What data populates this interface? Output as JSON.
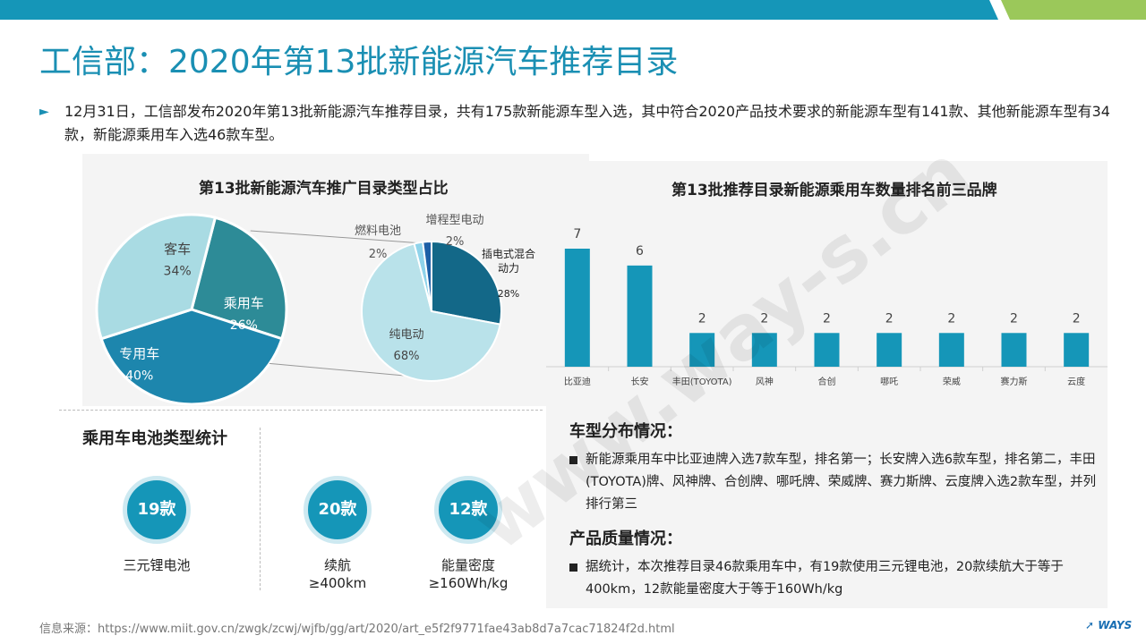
{
  "title": "工信部：2020年第13批新能源汽车推荐目录",
  "intro": "12月31日，工信部发布2020年第13批新能源汽车推荐目录，共有175款新能源车型入选，其中符合2020产品技术要求的新能源车型有141款、其他新能源车型有34款，新能源乘用车入选46款车型。",
  "colors": {
    "accent": "#1a8fb3",
    "bar": "#1596b8",
    "green": "#9bc85a"
  },
  "chart_data": [
    {
      "type": "pie",
      "title": "第13批新能源汽车推广目录类型占比",
      "slices": [
        {
          "label": "乘用车",
          "value_label": "26%",
          "value": 26,
          "color": "#2d8b97"
        },
        {
          "label": "专用车",
          "value_label": "40%",
          "value": 40,
          "color": "#1d86ad"
        },
        {
          "label": "客车",
          "value_label": "34%",
          "value": 34,
          "color": "#a9dbe3"
        }
      ],
      "sub_pie": {
        "parent": "乘用车",
        "slices": [
          {
            "label": "插电式混合\n动力",
            "value_label": "28%",
            "value": 28,
            "color": "#136888"
          },
          {
            "label": "纯电动",
            "value_label": "68%",
            "value": 68,
            "color": "#b9e2ea"
          },
          {
            "label": "燃料电池",
            "value_label": "2%",
            "value": 2,
            "color": "#8fd3ea"
          },
          {
            "label": "增程型电动",
            "value_label": "2%",
            "value": 2,
            "color": "#1d5fa6"
          }
        ]
      }
    },
    {
      "type": "bar",
      "title": "第13批推荐目录新能源乘用车数量排名前三品牌",
      "categories": [
        "比亚迪",
        "长安",
        "丰田(TOYOTA)",
        "风神",
        "合创",
        "哪吒",
        "荣威",
        "赛力斯",
        "云度"
      ],
      "values": [
        7,
        6,
        2,
        2,
        2,
        2,
        2,
        2,
        2
      ],
      "ylim": [
        0,
        7
      ]
    }
  ],
  "battery": {
    "title": "乘用车电池类型统计",
    "items": [
      {
        "value": "19款",
        "label": "三元锂电池"
      },
      {
        "value": "20款",
        "label": "续航\n≥400km"
      },
      {
        "value": "12款",
        "label": "能量密度\n≥160Wh/kg"
      }
    ]
  },
  "distribution": {
    "head": "车型分布情况：",
    "text": "新能源乘用车中比亚迪牌入选7款车型，排名第一；长安牌入选6款车型，排名第二，丰田(TOYOTA)牌、风神牌、合创牌、哪吒牌、荣威牌、赛力斯牌、云度牌入选2款车型，并列排行第三"
  },
  "quality": {
    "head": "产品质量情况：",
    "text": "据统计，本次推荐目录46款乘用车中，有19款使用三元锂电池，20款续航大于等于400km，12款能量密度大于等于160Wh/kg"
  },
  "source": "信息来源：https://www.miit.gov.cn/zwgk/zcwj/wjfb/gg/art/2020/art_e5f2f9771fae43ab8d7a7cac71824f2d.html",
  "logo": "WAYS",
  "watermark": "www.way-s.cn"
}
